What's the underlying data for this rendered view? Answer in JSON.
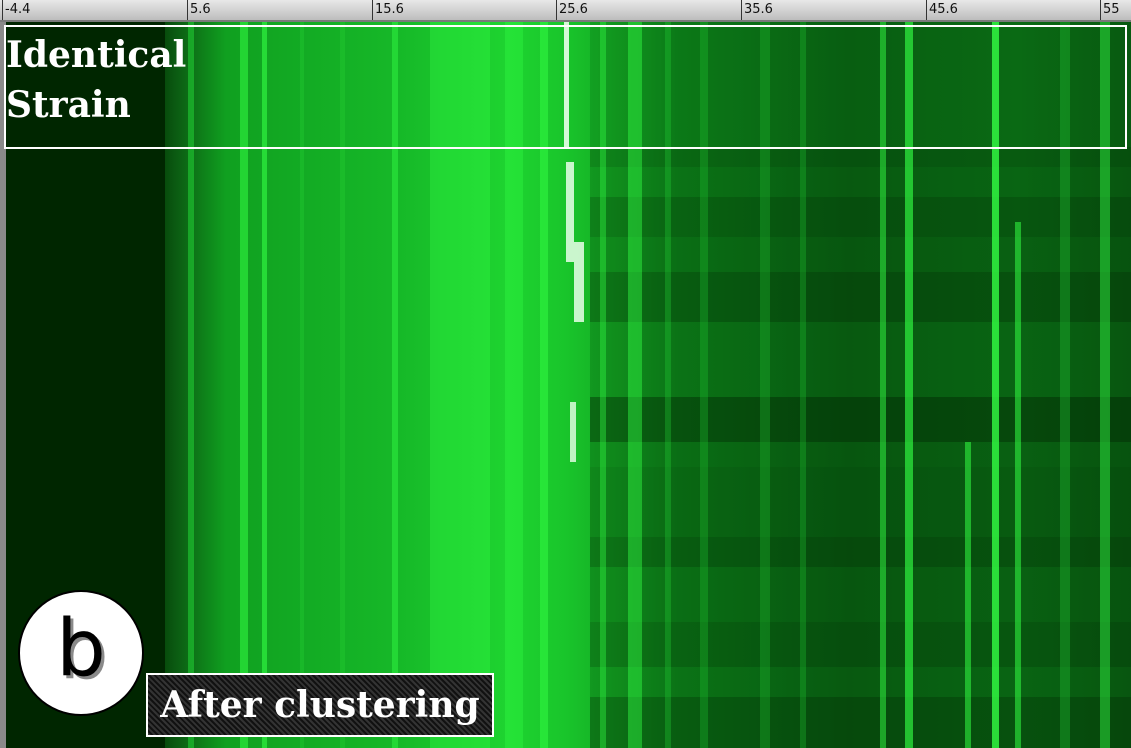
{
  "ruler": {
    "ticks": [
      {
        "label": "-4.4",
        "value": -4.4
      },
      {
        "label": "5.6",
        "value": 5.6
      },
      {
        "label": "15.6",
        "value": 15.6
      },
      {
        "label": "25.6",
        "value": 25.6
      },
      {
        "label": "35.6",
        "value": 35.6
      },
      {
        "label": "45.6",
        "value": 45.6
      },
      {
        "label": "55",
        "value": 55
      }
    ]
  },
  "overlays": {
    "identical_label": "Identical\nStrain",
    "badge_letter": "b",
    "after_clustering_label": "After clustering"
  },
  "colors": {
    "background": "#002200",
    "band_bright": "#33ff44",
    "band_mid": "#22cc33",
    "band_dim": "#0d7a18",
    "highlight": "#eaffea"
  }
}
